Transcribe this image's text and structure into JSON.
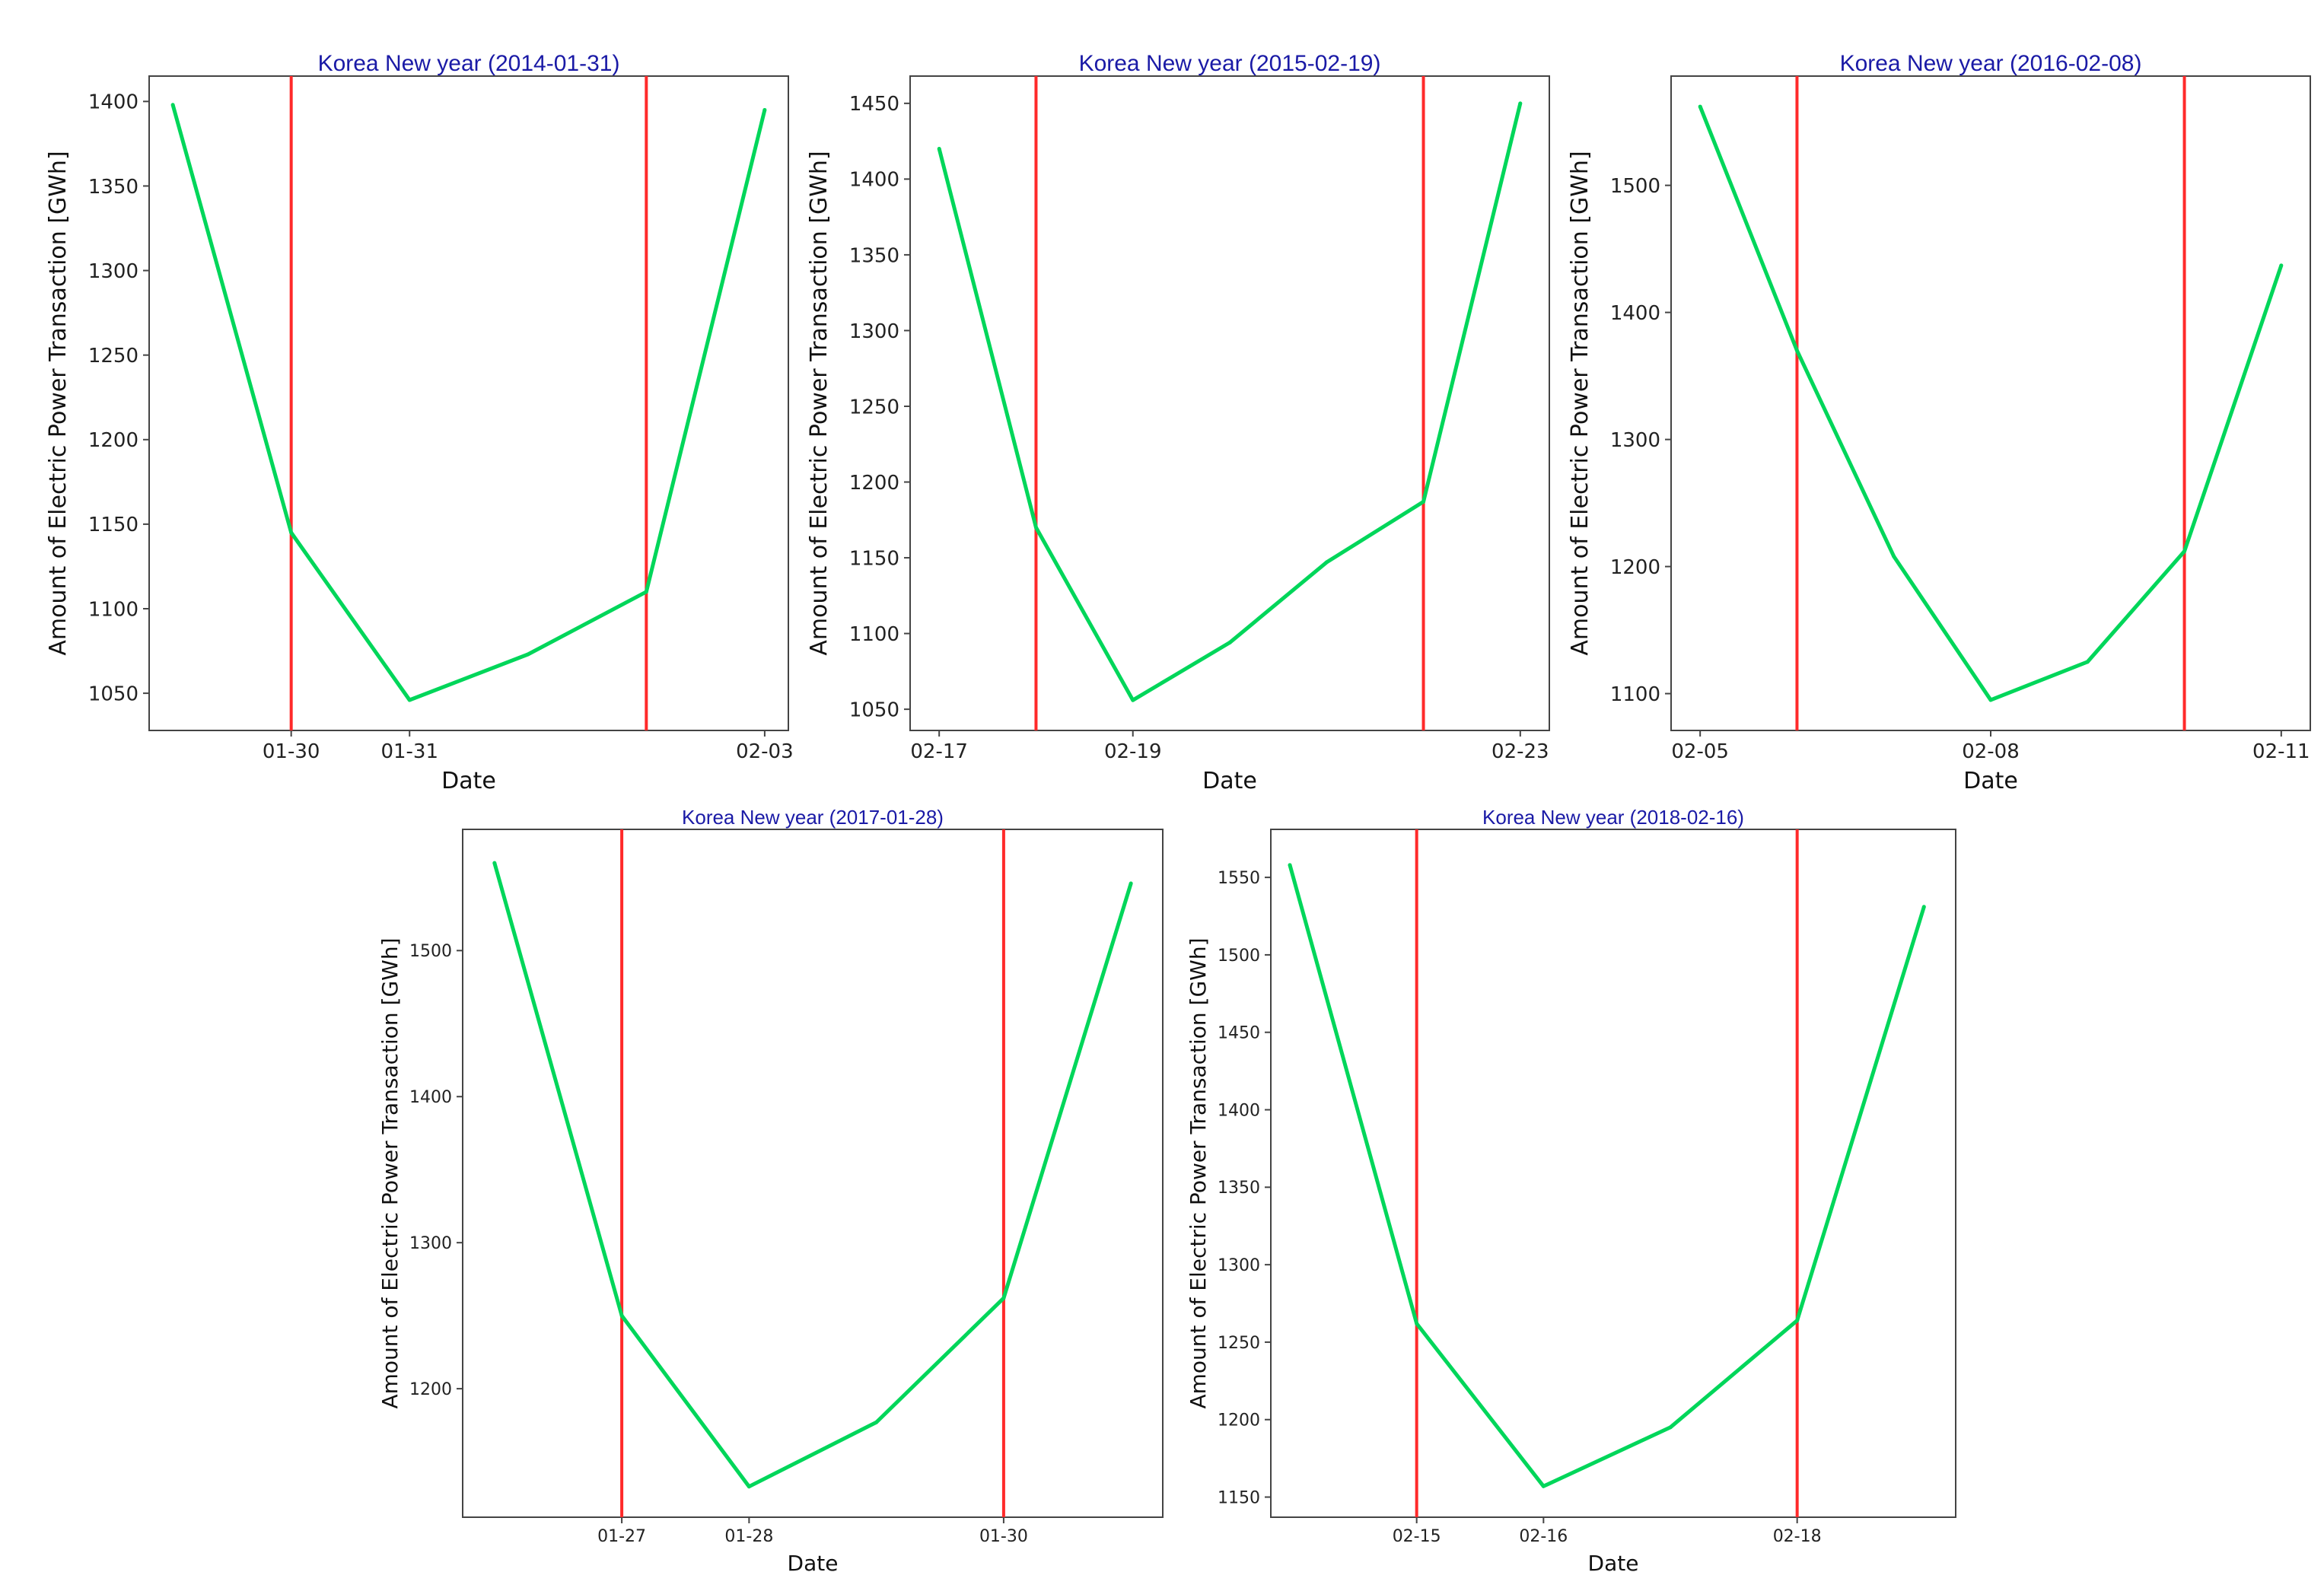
{
  "figure": {
    "colors": {
      "series": "#00d65a",
      "marker_line": "#ff2a2a",
      "title": "#1a1aa6",
      "axes": "#444444"
    },
    "icon": "none"
  },
  "chart_data": [
    {
      "type": "line",
      "title": "Korea New year (2014-01-31)",
      "xlabel": "Date",
      "ylabel": "Amount of Electric Power Transaction [GWh]",
      "x_index": [
        0,
        1,
        2,
        3,
        4,
        5
      ],
      "x_tick_index": [
        1,
        2,
        5
      ],
      "x_ticks": [
        "01-30",
        "01-31",
        "02-03"
      ],
      "y_ticks": [
        1050,
        1100,
        1150,
        1200,
        1250,
        1300,
        1350,
        1400
      ],
      "xlim": [
        -0.2,
        5.2
      ],
      "ylim": [
        1028,
        1415
      ],
      "series": [
        {
          "name": "electric power",
          "values": [
            1398,
            1145,
            1046,
            1073,
            1110,
            1395
          ]
        }
      ],
      "vlines": [
        1,
        4
      ]
    },
    {
      "type": "line",
      "title": "Korea New year (2015-02-19)",
      "xlabel": "Date",
      "ylabel": "Amount of Electric Power Transaction [GWh]",
      "x_index": [
        0,
        1,
        2,
        3,
        4,
        5,
        6
      ],
      "x_tick_index": [
        0,
        2,
        6
      ],
      "x_ticks": [
        "02-17",
        "02-19",
        "02-23"
      ],
      "y_ticks": [
        1050,
        1100,
        1150,
        1200,
        1250,
        1300,
        1350,
        1400,
        1450
      ],
      "xlim": [
        -0.3,
        6.3
      ],
      "ylim": [
        1036,
        1468
      ],
      "series": [
        {
          "name": "electric power",
          "values": [
            1420,
            1170,
            1056,
            1094,
            1147,
            1187,
            1450
          ]
        }
      ],
      "vlines": [
        1,
        5
      ]
    },
    {
      "type": "line",
      "title": "Korea New year (2016-02-08)",
      "xlabel": "Date",
      "ylabel": "Amount of Electric Power Transaction [GWh]",
      "x_index": [
        0,
        1,
        2,
        3,
        4,
        5,
        6
      ],
      "x_tick_index": [
        0,
        3,
        6
      ],
      "x_ticks": [
        "02-05",
        "02-08",
        "02-11"
      ],
      "y_ticks": [
        1100,
        1200,
        1300,
        1400,
        1500
      ],
      "xlim": [
        -0.3,
        6.3
      ],
      "ylim": [
        1071,
        1586
      ],
      "series": [
        {
          "name": "electric power",
          "values": [
            1562,
            1370,
            1208,
            1095,
            1125,
            1212,
            1437
          ]
        }
      ],
      "vlines": [
        1,
        5
      ]
    },
    {
      "type": "line",
      "title": "Korea New year (2017-01-28)",
      "xlabel": "Date",
      "ylabel": "Amount of Electric Power Transaction [GWh]",
      "x_index": [
        0,
        1,
        2,
        3,
        4,
        5
      ],
      "x_tick_index": [
        1,
        2,
        4
      ],
      "x_ticks": [
        "01-27",
        "01-28",
        "01-30"
      ],
      "y_ticks": [
        1200,
        1300,
        1400,
        1500
      ],
      "xlim": [
        -0.25,
        5.25
      ],
      "ylim": [
        1112,
        1583
      ],
      "series": [
        {
          "name": "electric power",
          "values": [
            1560,
            1250,
            1133,
            1177,
            1262,
            1546
          ]
        }
      ],
      "vlines": [
        1,
        4
      ]
    },
    {
      "type": "line",
      "title": "Korea New year (2018-02-16)",
      "xlabel": "Date",
      "ylabel": "Amount of Electric Power Transaction [GWh]",
      "x_index": [
        0,
        1,
        2,
        3,
        4,
        5
      ],
      "x_tick_index": [
        1,
        2,
        4
      ],
      "x_ticks": [
        "02-15",
        "02-16",
        "02-18"
      ],
      "y_ticks": [
        1150,
        1200,
        1250,
        1300,
        1350,
        1400,
        1450,
        1500,
        1550
      ],
      "xlim": [
        -0.15,
        5.25
      ],
      "ylim": [
        1137,
        1581
      ],
      "series": [
        {
          "name": "electric power",
          "values": [
            1558,
            1262,
            1157,
            1195,
            1264,
            1531
          ]
        }
      ],
      "vlines": [
        1,
        4
      ]
    }
  ]
}
